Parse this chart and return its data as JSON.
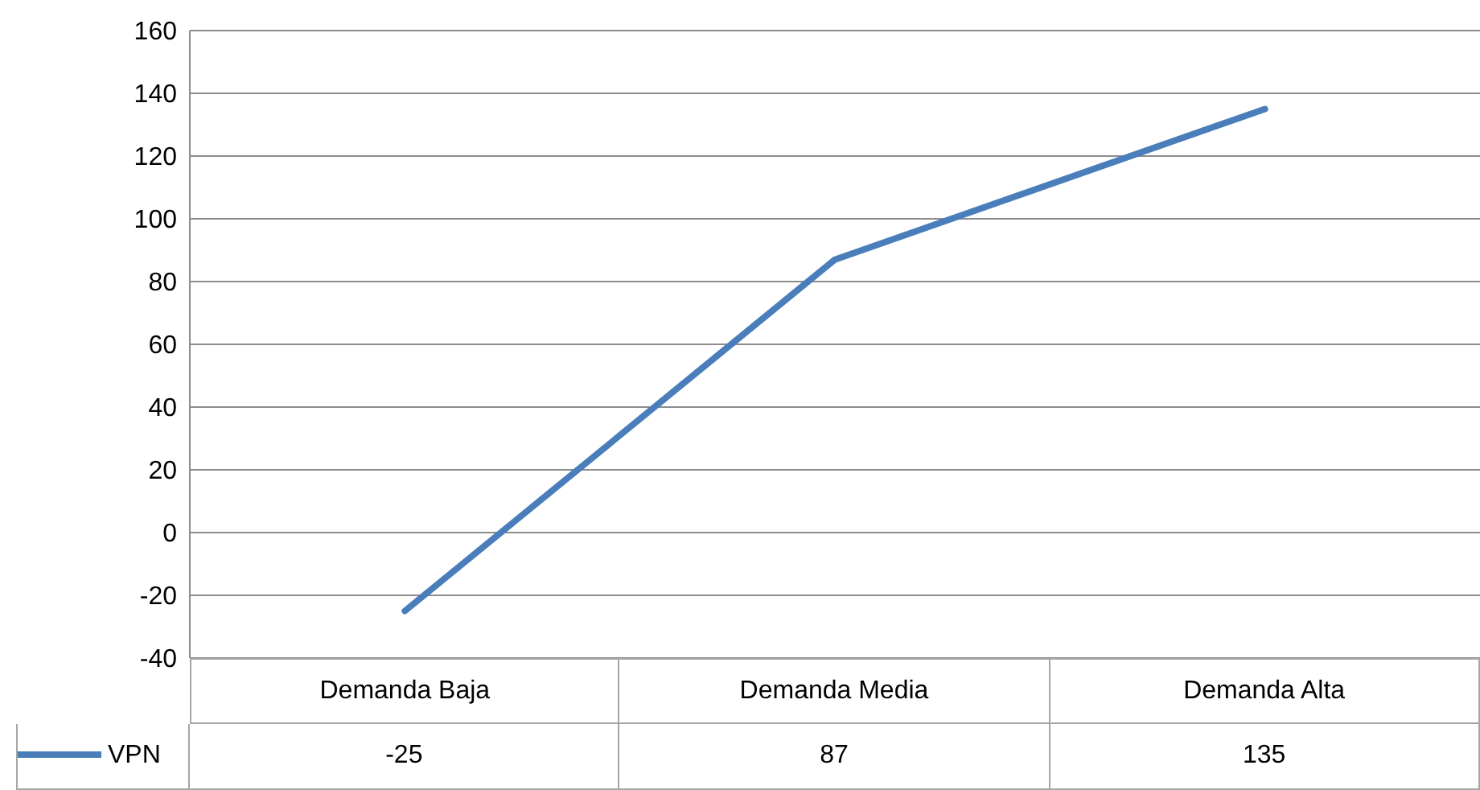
{
  "chart_data": {
    "type": "line",
    "categories": [
      "Demanda Baja",
      "Demanda Media",
      "Demanda Alta"
    ],
    "series": [
      {
        "name": "VPN",
        "color": "#4a7ebb",
        "values": [
          -25,
          87,
          135
        ]
      }
    ],
    "ylim": [
      -40,
      160
    ],
    "yticks": [
      -40,
      -20,
      0,
      20,
      40,
      60,
      80,
      100,
      120,
      140,
      160
    ],
    "grid": "y",
    "legend": "bottom",
    "data_labels": true
  }
}
